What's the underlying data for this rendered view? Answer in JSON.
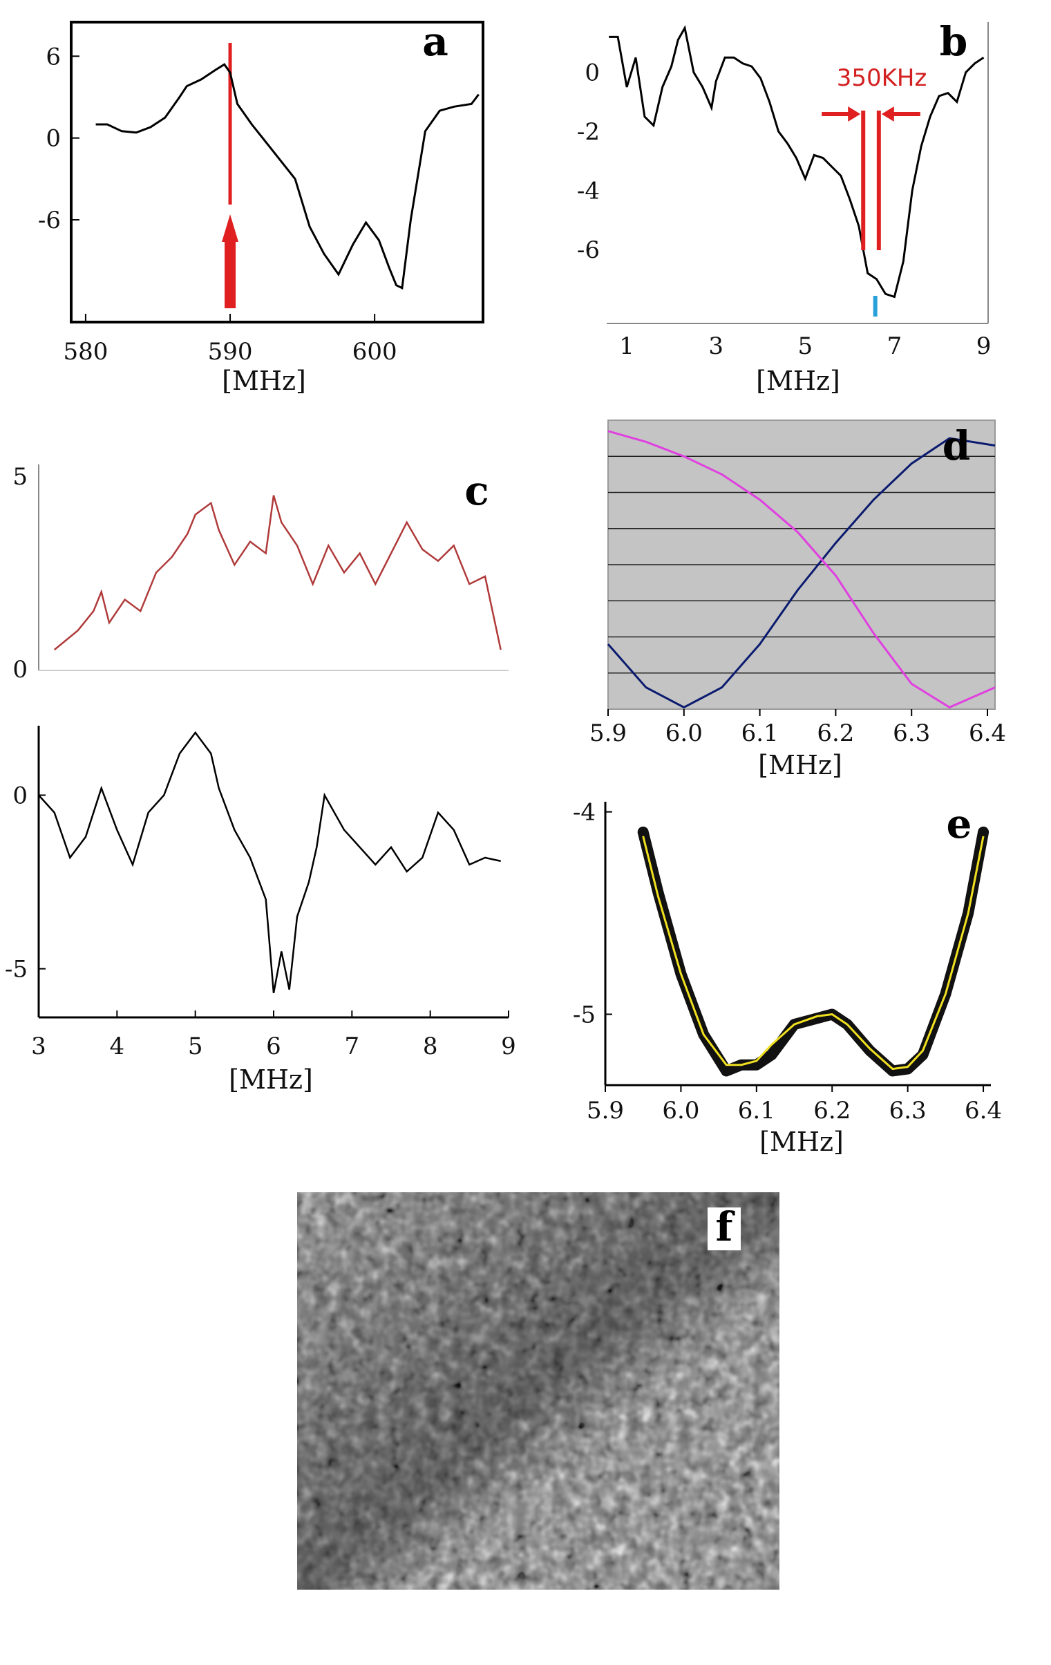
{
  "colors": {
    "red": "#e02020",
    "dark_red": "#b03a3a",
    "navy": "#0a1a6e",
    "magenta": "#e040e0",
    "yellow": "#f0e020",
    "blue": "#2aa0d8",
    "grey_bg": "#c4c4c4"
  },
  "chart_data": [
    {
      "panel": "a",
      "type": "line",
      "label": "a",
      "xlabel": "[MHz]",
      "xlim": [
        579,
        607.5
      ],
      "ylim": [
        -13.5,
        8.5
      ],
      "x_ticks": [
        580,
        590,
        600
      ],
      "x_tick_labels": [
        "580",
        "590",
        "600"
      ],
      "y_ticks": [
        6,
        0,
        -6
      ],
      "y_tick_labels": [
        "6",
        "0",
        "-6"
      ],
      "marker_x": 590,
      "series": [
        {
          "name": "signal",
          "x": [
            580.7,
            581.5,
            582.5,
            583.5,
            584.5,
            585.5,
            586.5,
            587,
            588,
            589,
            589.6,
            590,
            590.5,
            591.5,
            593,
            594.5,
            595.5,
            596.5,
            597.5,
            598.5,
            599.4,
            600.3,
            601,
            601.5,
            601.9,
            602.5,
            603.5,
            604.5,
            605.5,
            606.7,
            607.2
          ],
          "y": [
            1.0,
            1.0,
            0.5,
            0.4,
            0.8,
            1.5,
            3.0,
            3.8,
            4.3,
            5.0,
            5.4,
            4.8,
            2.5,
            1.0,
            -1.0,
            -3.0,
            -6.5,
            -8.5,
            -10.0,
            -7.8,
            -6.2,
            -7.5,
            -9.5,
            -10.8,
            -11.0,
            -6.0,
            0.5,
            2.0,
            2.3,
            2.5,
            3.2
          ]
        }
      ]
    },
    {
      "panel": "b",
      "type": "line",
      "label": "b",
      "xlabel": "[MHz]",
      "xlim": [
        0.55,
        9.1
      ],
      "ylim": [
        -8.5,
        1.7
      ],
      "x_ticks": [
        1,
        3,
        5,
        7,
        9
      ],
      "x_tick_labels": [
        "1",
        "3",
        "5",
        "7",
        "9"
      ],
      "y_ticks": [
        0,
        -2,
        -4,
        -6
      ],
      "y_tick_labels": [
        "0",
        "-2",
        "-4",
        "-6"
      ],
      "annotation": "350KHz",
      "annotation_x": [
        6.3,
        6.65
      ],
      "series": [
        {
          "name": "signal",
          "x": [
            0.6,
            0.8,
            1.0,
            1.2,
            1.4,
            1.6,
            1.8,
            2.0,
            2.15,
            2.3,
            2.5,
            2.7,
            2.9,
            3.0,
            3.2,
            3.4,
            3.6,
            3.8,
            4.0,
            4.2,
            4.4,
            4.6,
            4.8,
            5.0,
            5.2,
            5.4,
            5.6,
            5.8,
            6.0,
            6.2,
            6.4,
            6.6,
            6.8,
            7.0,
            7.2,
            7.4,
            7.6,
            7.8,
            8.0,
            8.2,
            8.4,
            8.6,
            8.8,
            9.0
          ],
          "y": [
            1.2,
            1.2,
            -0.5,
            0.5,
            -1.5,
            -1.8,
            -0.5,
            0.2,
            1.1,
            1.5,
            0.0,
            -0.5,
            -1.2,
            -0.3,
            0.5,
            0.5,
            0.3,
            0.2,
            -0.2,
            -1.0,
            -2.0,
            -2.4,
            -2.9,
            -3.6,
            -2.8,
            -2.9,
            -3.2,
            -3.5,
            -4.3,
            -5.2,
            -6.8,
            -7.0,
            -7.5,
            -7.6,
            -6.4,
            -4.0,
            -2.5,
            -1.5,
            -0.8,
            -0.7,
            -1.0,
            0.0,
            0.3,
            0.5
          ]
        }
      ]
    },
    {
      "panel": "c",
      "type": "line",
      "label": "c",
      "xlabel": "[MHz]",
      "xlim": [
        3,
        9
      ],
      "x_ticks": [
        3,
        4,
        5,
        6,
        7,
        8,
        9
      ],
      "x_tick_labels": [
        "3",
        "4",
        "5",
        "6",
        "7",
        "8",
        "9"
      ],
      "top_ylim": [
        0,
        5.3
      ],
      "top_y_ticks": [
        5,
        0
      ],
      "top_y_tick_labels": [
        "5",
        "0"
      ],
      "bottom_ylim": [
        -6.4,
        2
      ],
      "bottom_y_ticks": [
        0,
        -5
      ],
      "bottom_y_tick_labels": [
        "0",
        "-5"
      ],
      "series": [
        {
          "name": "top (red)",
          "x": [
            3.2,
            3.5,
            3.7,
            3.8,
            3.9,
            4.1,
            4.3,
            4.5,
            4.7,
            4.9,
            5.0,
            5.2,
            5.3,
            5.5,
            5.7,
            5.9,
            6.0,
            6.1,
            6.3,
            6.5,
            6.7,
            6.9,
            7.1,
            7.3,
            7.5,
            7.7,
            7.9,
            8.1,
            8.3,
            8.5,
            8.7,
            8.9
          ],
          "y": [
            0.5,
            1.0,
            1.5,
            2.0,
            1.2,
            1.8,
            1.5,
            2.5,
            2.9,
            3.5,
            4.0,
            4.3,
            3.6,
            2.7,
            3.3,
            3.0,
            4.5,
            3.8,
            3.2,
            2.2,
            3.2,
            2.5,
            3.0,
            2.2,
            3.0,
            3.8,
            3.1,
            2.8,
            3.2,
            2.2,
            2.4,
            0.5
          ]
        },
        {
          "name": "bottom (black)",
          "x": [
            3.0,
            3.2,
            3.4,
            3.6,
            3.8,
            4.0,
            4.2,
            4.4,
            4.6,
            4.8,
            5.0,
            5.1,
            5.2,
            5.3,
            5.5,
            5.7,
            5.9,
            6.0,
            6.1,
            6.2,
            6.3,
            6.45,
            6.55,
            6.65,
            6.9,
            7.1,
            7.3,
            7.5,
            7.7,
            7.9,
            8.1,
            8.3,
            8.5,
            8.7,
            8.9
          ],
          "y": [
            0.0,
            -0.5,
            -1.8,
            -1.2,
            0.2,
            -1.0,
            -2.0,
            -0.5,
            0.0,
            1.2,
            1.8,
            1.5,
            1.2,
            0.2,
            -1.0,
            -1.8,
            -3.0,
            -5.7,
            -4.5,
            -5.6,
            -3.5,
            -2.5,
            -1.5,
            0.0,
            -1.0,
            -1.5,
            -2.0,
            -1.5,
            -2.2,
            -1.8,
            -0.5,
            -1.0,
            -2.0,
            -1.8,
            -1.9
          ]
        }
      ]
    },
    {
      "panel": "d",
      "type": "line",
      "label": "d",
      "xlabel": "[MHz]",
      "xlim": [
        5.9,
        6.41
      ],
      "ylim": [
        0,
        8
      ],
      "x_ticks": [
        5.9,
        6.0,
        6.1,
        6.2,
        6.3,
        6.4
      ],
      "x_tick_labels": [
        "5.9",
        "6.0",
        "6.1",
        "6.2",
        "6.3",
        "6.4"
      ],
      "gridlines": [
        1,
        2,
        3,
        4,
        5,
        6,
        7
      ],
      "series": [
        {
          "name": "navy",
          "x": [
            5.9,
            5.95,
            6.0,
            6.05,
            6.1,
            6.15,
            6.2,
            6.25,
            6.3,
            6.35,
            6.41
          ],
          "y": [
            1.8,
            0.6,
            0.05,
            0.6,
            1.8,
            3.3,
            4.6,
            5.8,
            6.8,
            7.5,
            7.3
          ]
        },
        {
          "name": "magenta",
          "x": [
            5.9,
            5.95,
            6.0,
            6.05,
            6.1,
            6.15,
            6.2,
            6.25,
            6.3,
            6.35,
            6.41
          ],
          "y": [
            7.7,
            7.4,
            7.0,
            6.5,
            5.8,
            4.9,
            3.7,
            2.1,
            0.7,
            0.05,
            0.6
          ]
        }
      ]
    },
    {
      "panel": "e",
      "type": "line",
      "label": "e",
      "xlabel": "[MHz]",
      "xlim": [
        5.9,
        6.41
      ],
      "ylim": [
        -5.35,
        -3.95
      ],
      "x_ticks": [
        5.9,
        6.0,
        6.1,
        6.2,
        6.3,
        6.4
      ],
      "x_tick_labels": [
        "5.9",
        "6.0",
        "6.1",
        "6.2",
        "6.3",
        "6.4"
      ],
      "y_ticks": [
        -4,
        -5
      ],
      "y_tick_labels": [
        "-4",
        "-5"
      ],
      "series": [
        {
          "name": "data",
          "x": [
            5.95,
            5.97,
            6.0,
            6.03,
            6.06,
            6.08,
            6.1,
            6.12,
            6.15,
            6.18,
            6.2,
            6.22,
            6.25,
            6.28,
            6.3,
            6.32,
            6.35,
            6.38,
            6.4
          ],
          "y": [
            -4.1,
            -4.4,
            -4.8,
            -5.1,
            -5.28,
            -5.25,
            -5.25,
            -5.2,
            -5.05,
            -5.02,
            -5.0,
            -5.05,
            -5.18,
            -5.28,
            -5.27,
            -5.2,
            -4.9,
            -4.5,
            -4.1
          ]
        },
        {
          "name": "fit",
          "x": [
            5.95,
            5.97,
            6.0,
            6.03,
            6.06,
            6.08,
            6.1,
            6.12,
            6.15,
            6.18,
            6.2,
            6.22,
            6.25,
            6.28,
            6.3,
            6.32,
            6.35,
            6.38,
            6.4
          ],
          "y": [
            -4.12,
            -4.42,
            -4.8,
            -5.1,
            -5.25,
            -5.25,
            -5.23,
            -5.15,
            -5.05,
            -5.01,
            -5.0,
            -5.05,
            -5.17,
            -5.27,
            -5.26,
            -5.18,
            -4.9,
            -4.5,
            -4.12
          ]
        }
      ]
    },
    {
      "panel": "f",
      "type": "image",
      "label": "f"
    }
  ]
}
